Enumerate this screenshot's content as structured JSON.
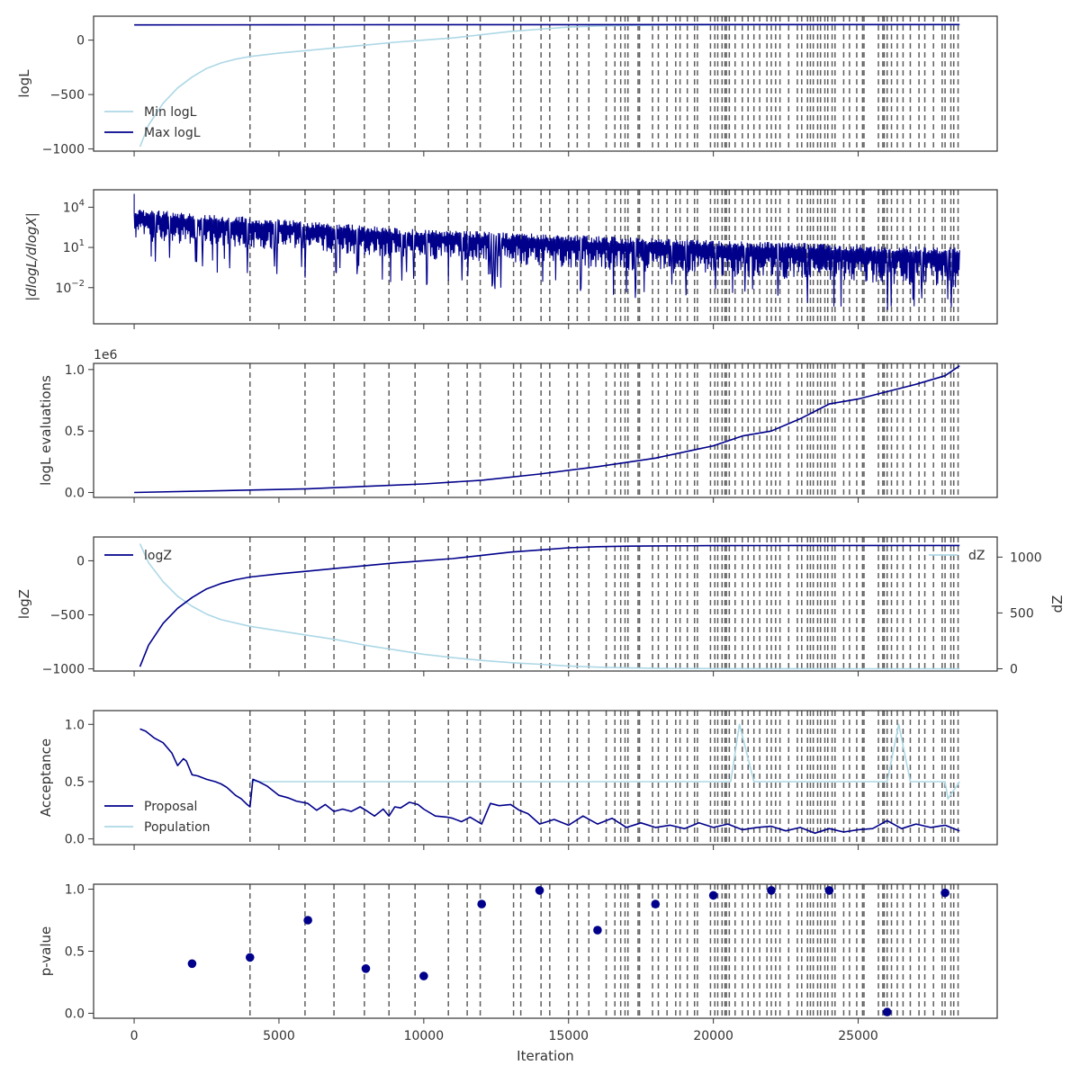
{
  "chart_data": [
    {
      "type": "line",
      "ylabel": "logL",
      "ylim": [
        -1020,
        220
      ],
      "yticks": [
        0,
        -500,
        -1000
      ],
      "ytick_labels": [
        "0",
        "−500",
        "−1000"
      ],
      "legend": "lower-left",
      "series": [
        {
          "name": "Min logL",
          "color": "#add8e6",
          "x": [
            200,
            500,
            1000,
            1500,
            2000,
            2500,
            3000,
            3500,
            4000,
            5000,
            6000,
            7000,
            8000,
            9000,
            10000,
            11000,
            12000,
            13000,
            14000,
            15000,
            16000,
            17000,
            18000,
            20000,
            22000,
            25000,
            28500
          ],
          "y": [
            -980,
            -780,
            -580,
            -440,
            -340,
            -260,
            -210,
            -175,
            -150,
            -120,
            -95,
            -70,
            -45,
            -20,
            0,
            20,
            50,
            80,
            100,
            120,
            130,
            135,
            138,
            140,
            141,
            142,
            142
          ]
        },
        {
          "name": "Max logL",
          "color": "#00008b",
          "x": [
            0,
            5000,
            10000,
            15000,
            20000,
            25000,
            28500
          ],
          "y": [
            140,
            141,
            142,
            142,
            143,
            143,
            143
          ]
        }
      ]
    },
    {
      "type": "line",
      "ylabel": "|dlogL/dlogX|",
      "yscale": "log",
      "ylim": [
        -4.7,
        5.3
      ],
      "yticks": [
        4,
        1,
        -2
      ],
      "series": [
        {
          "name": "",
          "color": "#00008b",
          "x_range": [
            0,
            28500
          ],
          "upper_exp": [
            3.9,
            2.4,
            1.6,
            1.0
          ],
          "lower_exp": [
            1.5,
            0.2,
            -1.0,
            -2.0
          ]
        }
      ]
    },
    {
      "type": "line",
      "ylabel": "logL evaluations",
      "offset_label": "1e6",
      "ylim": [
        -0.04,
        1.05
      ],
      "yticks": [
        0.0,
        0.5,
        1.0
      ],
      "ytick_labels": [
        "0.0",
        "0.5",
        "1.0"
      ],
      "series": [
        {
          "name": "",
          "color": "#00008b",
          "x": [
            0,
            4000,
            6000,
            8000,
            10000,
            12000,
            14000,
            16000,
            18000,
            20000,
            21000,
            22000,
            23000,
            24000,
            25000,
            26000,
            27000,
            28000,
            28500
          ],
          "y": [
            0.0,
            0.02,
            0.03,
            0.05,
            0.07,
            0.1,
            0.15,
            0.21,
            0.28,
            0.38,
            0.46,
            0.5,
            0.6,
            0.72,
            0.76,
            0.82,
            0.88,
            0.95,
            1.03
          ]
        }
      ]
    },
    {
      "type": "line",
      "ylabel": "logZ",
      "y2label": "dZ",
      "ylim": [
        -1020,
        220
      ],
      "y2lim": [
        -20,
        1180
      ],
      "yticks": [
        0,
        -500,
        -1000
      ],
      "ytick_labels": [
        "0",
        "−500",
        "−1000"
      ],
      "y2ticks": [
        1000,
        500,
        0
      ],
      "y2tick_labels": [
        "1000",
        "500",
        "0"
      ],
      "series": [
        {
          "name": "logZ",
          "color": "#00008b",
          "axis": "left",
          "x": [
            200,
            500,
            1000,
            1500,
            2000,
            2500,
            3000,
            3500,
            4000,
            5000,
            6000,
            7000,
            8000,
            9000,
            10000,
            11000,
            12000,
            13000,
            14000,
            15000,
            16000,
            17000,
            18000,
            20000,
            22000,
            25000,
            28500
          ],
          "y": [
            -980,
            -780,
            -580,
            -440,
            -340,
            -260,
            -210,
            -175,
            -150,
            -120,
            -95,
            -70,
            -45,
            -20,
            0,
            20,
            50,
            80,
            100,
            120,
            130,
            135,
            138,
            140,
            141,
            142,
            142
          ]
        },
        {
          "name": "dZ",
          "color": "#add8e6",
          "axis": "right",
          "x": [
            200,
            500,
            1000,
            1500,
            2000,
            2500,
            3000,
            4000,
            5000,
            6000,
            7000,
            8000,
            9000,
            10000,
            11000,
            12000,
            13000,
            14000,
            15000,
            16000,
            17000,
            18000,
            20000,
            22000,
            25000,
            28500
          ],
          "y": [
            1120,
            950,
            780,
            650,
            560,
            490,
            440,
            380,
            340,
            300,
            260,
            210,
            170,
            130,
            100,
            75,
            55,
            40,
            25,
            15,
            9,
            5,
            2,
            1,
            0,
            0
          ]
        }
      ]
    },
    {
      "type": "line",
      "ylabel": "Acceptance",
      "ylim": [
        -0.05,
        1.12
      ],
      "yticks": [
        0.0,
        0.5,
        1.0
      ],
      "ytick_labels": [
        "0.0",
        "0.5",
        "1.0"
      ],
      "legend": "lower-left",
      "series": [
        {
          "name": "Proposal",
          "color": "#00008b",
          "x": [
            200,
            400,
            700,
            1000,
            1300,
            1500,
            1700,
            1800,
            2000,
            2200,
            2500,
            2800,
            3000,
            3200,
            3500,
            3700,
            3900,
            4000,
            4100,
            4300,
            4600,
            5000,
            5300,
            5600,
            6000,
            6300,
            6600,
            6900,
            7200,
            7500,
            7800,
            8000,
            8300,
            8600,
            8800,
            9000,
            9200,
            9500,
            9800,
            10000,
            10400,
            10800,
            11000,
            11300,
            11600,
            12000,
            12300,
            12600,
            13000,
            13300,
            13600,
            14000,
            14500,
            15000,
            15500,
            16000,
            16500,
            17000,
            17500,
            18000,
            18500,
            19000,
            19500,
            20000,
            20500,
            21000,
            21500,
            22000,
            22500,
            23000,
            23500,
            24000,
            24500,
            25000,
            25500,
            26000,
            26500,
            27000,
            27500,
            28000,
            28500
          ],
          "y": [
            0.96,
            0.94,
            0.88,
            0.84,
            0.75,
            0.64,
            0.7,
            0.68,
            0.56,
            0.55,
            0.52,
            0.5,
            0.48,
            0.45,
            0.38,
            0.35,
            0.3,
            0.28,
            0.52,
            0.5,
            0.46,
            0.38,
            0.36,
            0.33,
            0.31,
            0.25,
            0.3,
            0.24,
            0.26,
            0.24,
            0.28,
            0.25,
            0.2,
            0.26,
            0.2,
            0.28,
            0.27,
            0.32,
            0.3,
            0.26,
            0.2,
            0.19,
            0.18,
            0.15,
            0.19,
            0.13,
            0.31,
            0.29,
            0.3,
            0.25,
            0.22,
            0.13,
            0.17,
            0.12,
            0.2,
            0.13,
            0.18,
            0.1,
            0.14,
            0.1,
            0.12,
            0.09,
            0.14,
            0.1,
            0.13,
            0.08,
            0.1,
            0.11,
            0.07,
            0.1,
            0.05,
            0.09,
            0.06,
            0.08,
            0.09,
            0.16,
            0.09,
            0.13,
            0.1,
            0.12,
            0.07
          ]
        },
        {
          "name": "Population",
          "color": "#add8e6",
          "x": [
            4000,
            4200,
            5000,
            10000,
            15000,
            20000,
            20600,
            20900,
            21400,
            22000,
            25000,
            26000,
            26400,
            26800,
            27500,
            28000,
            28100,
            28500
          ],
          "y": [
            0.5,
            0.5,
            0.5,
            0.5,
            0.5,
            0.5,
            0.5,
            1.0,
            0.5,
            0.5,
            0.5,
            0.5,
            1.0,
            0.5,
            0.5,
            0.5,
            0.35,
            0.5
          ]
        }
      ]
    },
    {
      "type": "scatter",
      "ylabel": "p-value",
      "xlabel": "Iteration",
      "ylim": [
        -0.04,
        1.04
      ],
      "yticks": [
        0.0,
        0.5,
        1.0
      ],
      "ytick_labels": [
        "0.0",
        "0.5",
        "1.0"
      ],
      "xlim": [
        -1400,
        29800
      ],
      "xticks": [
        0,
        5000,
        10000,
        15000,
        20000,
        25000
      ],
      "xtick_labels": [
        "0",
        "5000",
        "10000",
        "15000",
        "20000",
        "25000"
      ],
      "series": [
        {
          "name": "",
          "color": "#00008b",
          "x": [
            2000,
            4000,
            6000,
            8000,
            10000,
            12000,
            14000,
            16000,
            18000,
            20000,
            22000,
            24000,
            26000,
            28000
          ],
          "y": [
            0.4,
            0.45,
            0.75,
            0.36,
            0.3,
            0.88,
            0.99,
            0.67,
            0.88,
            0.95,
            0.99,
            0.99,
            0.01,
            0.97
          ]
        }
      ]
    }
  ],
  "shared": {
    "xlim": [
      -1400,
      29800
    ],
    "vlines": [
      4000,
      5900,
      6900,
      7950,
      8800,
      9700,
      10850,
      11500,
      11950,
      13100,
      13350,
      14050,
      14350,
      15000,
      15300,
      15700,
      16300,
      16600,
      16800,
      16950,
      17050,
      17400,
      17450,
      17900,
      18100,
      18400,
      18700,
      18850,
      19100,
      19350,
      19450,
      19900,
      20050,
      20150,
      20300,
      20400,
      20450,
      20550,
      20750,
      21000,
      21200,
      21400,
      21600,
      21850,
      22000,
      22150,
      22300,
      22600,
      22900,
      23050,
      23250,
      23350,
      23450,
      23600,
      23700,
      23850,
      23950,
      24100,
      24200,
      24500,
      24700,
      24950,
      25150,
      25200,
      25700,
      25850,
      25900,
      26000,
      26150,
      26350,
      26550,
      26800,
      27100,
      27300,
      27600,
      27900,
      28000,
      28200,
      28300,
      28450
    ]
  }
}
